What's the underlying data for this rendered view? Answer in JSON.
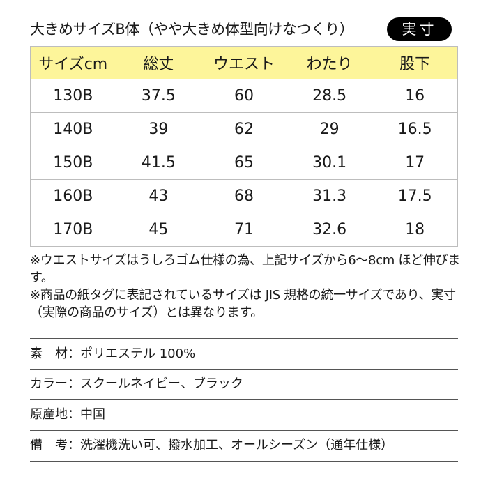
{
  "title": "大きめサイズB体（やや大きめ体型向けなつくり）",
  "badge": "実寸",
  "table": {
    "headers": [
      "サイズcm",
      "総丈",
      "ウエスト",
      "わたり",
      "股下"
    ],
    "rows": [
      [
        "130B",
        "37.5",
        "60",
        "28.5",
        "16"
      ],
      [
        "140B",
        "39",
        "62",
        "29",
        "16.5"
      ],
      [
        "150B",
        "41.5",
        "65",
        "30.1",
        "17"
      ],
      [
        "160B",
        "43",
        "68",
        "31.3",
        "17.5"
      ],
      [
        "170B",
        "45",
        "71",
        "32.6",
        "18"
      ]
    ]
  },
  "notes": [
    "※ウエストサイズはうしろゴム仕様の為、上記サイズから6～8cm ほど伸びます。",
    "※商品の紙タグに表記されているサイズは JIS 規格の統一サイズであり、実寸（実際の商品のサイズ）とは異なります。"
  ],
  "specs": [
    {
      "label": "素　材：",
      "value": "ポリエステル 100%"
    },
    {
      "label": "カラー：",
      "value": "スクールネイビー、ブラック"
    },
    {
      "label": "原産地：",
      "value": "中国"
    },
    {
      "label": "備　考：",
      "value": "洗濯機洗い可、撥水加工、オールシーズン（通年仕様）"
    }
  ],
  "colors": {
    "header_bg": "#fdf59a",
    "badge_bg": "#000000"
  }
}
